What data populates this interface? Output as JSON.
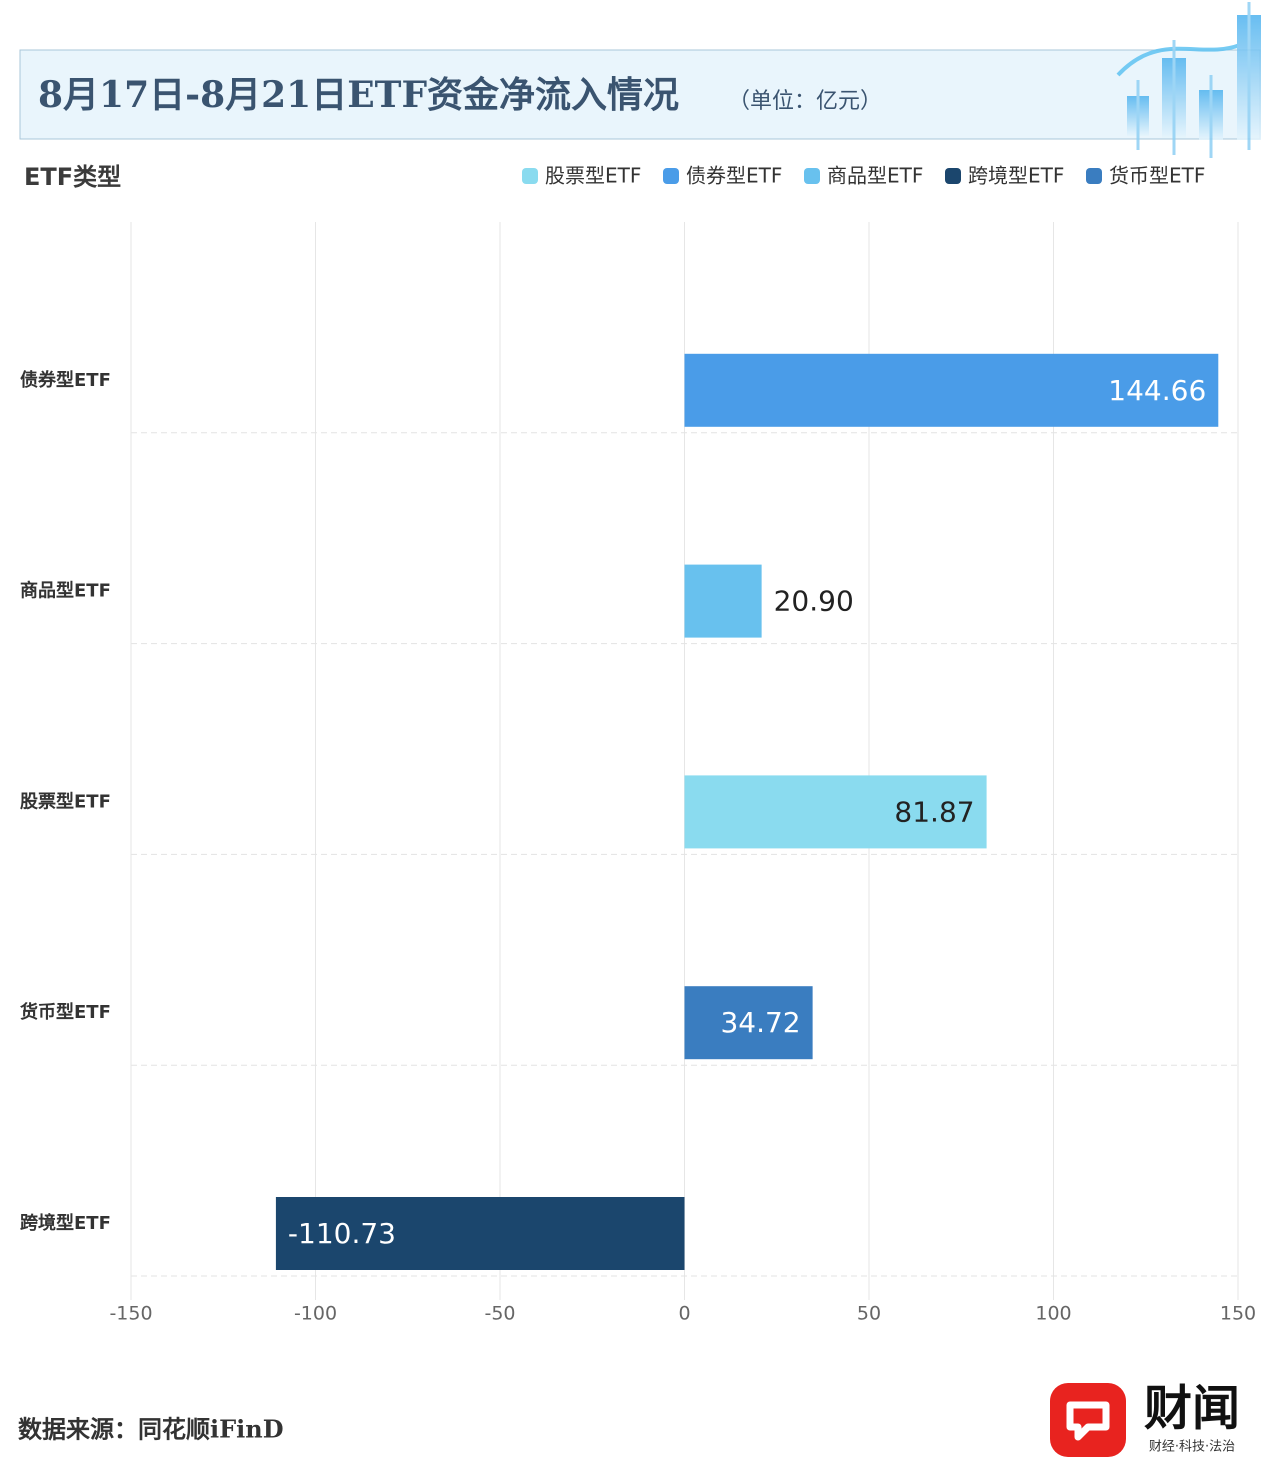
{
  "chart_data": {
    "type": "bar",
    "orientation": "horizontal",
    "title": "8月17日-8月21日ETF资金净流入情况",
    "subtitle": "（单位：亿元）",
    "y_label": "ETF类型",
    "categories": [
      "债券型ETF",
      "商品型ETF",
      "股票型ETF",
      "货币型ETF",
      "跨境型ETF"
    ],
    "values": [
      144.66,
      20.9,
      81.87,
      34.72,
      -110.73
    ],
    "value_labels": [
      "144.66",
      "20.90",
      "81.87",
      "34.72",
      "-110.73"
    ],
    "colors": [
      "#4a9ce8",
      "#68c1ee",
      "#8adbef",
      "#3a7dc0",
      "#1b466d"
    ],
    "legend": [
      {
        "name": "股票型ETF",
        "color": "#8adbef"
      },
      {
        "name": "债券型ETF",
        "color": "#4a9ce8"
      },
      {
        "name": "商品型ETF",
        "color": "#68c1ee"
      },
      {
        "name": "跨境型ETF",
        "color": "#1b466d"
      },
      {
        "name": "货币型ETF",
        "color": "#3a7dc0"
      }
    ],
    "xlim": [
      -150,
      150
    ],
    "xticks": [
      -150,
      -100,
      -50,
      0,
      50,
      100,
      150
    ],
    "grid": true
  },
  "footer": {
    "source": "数据来源：同花顺iFinD",
    "logo_name": "财闻",
    "logo_slogan": "财经·科技·法治"
  }
}
